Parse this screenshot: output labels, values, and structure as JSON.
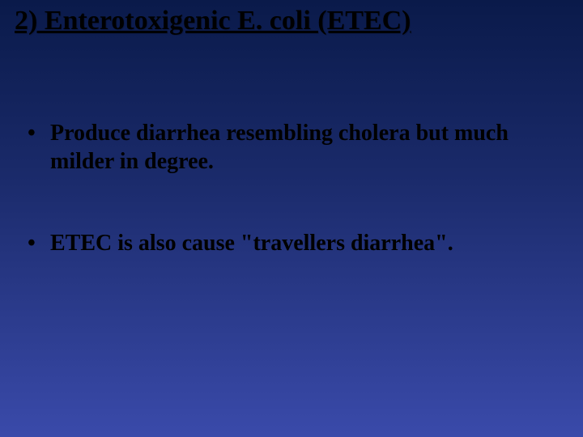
{
  "slide": {
    "title": "2) Enterotoxigenic E. coli (ETEC)",
    "bullets": [
      "Produce diarrhea resembling cholera but much milder in degree.",
      "ETEC is also cause \"travellers diarrhea\"."
    ],
    "background_gradient": [
      "#0a1a4a",
      "#1a2a6a",
      "#2a3a8a",
      "#3a4aaa"
    ],
    "title_fontsize": 34,
    "bullet_fontsize": 28,
    "font_family": "Times New Roman",
    "text_color": "#000000"
  }
}
